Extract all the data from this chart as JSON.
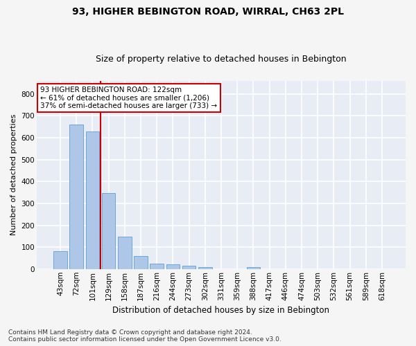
{
  "title": "93, HIGHER BEBINGTON ROAD, WIRRAL, CH63 2PL",
  "subtitle": "Size of property relative to detached houses in Bebington",
  "xlabel": "Distribution of detached houses by size in Bebington",
  "ylabel": "Number of detached properties",
  "categories": [
    "43sqm",
    "72sqm",
    "101sqm",
    "129sqm",
    "158sqm",
    "187sqm",
    "216sqm",
    "244sqm",
    "273sqm",
    "302sqm",
    "331sqm",
    "359sqm",
    "388sqm",
    "417sqm",
    "446sqm",
    "474sqm",
    "503sqm",
    "532sqm",
    "561sqm",
    "589sqm",
    "618sqm"
  ],
  "values": [
    83,
    660,
    630,
    348,
    148,
    58,
    23,
    20,
    15,
    10,
    0,
    0,
    8,
    0,
    0,
    0,
    0,
    0,
    0,
    0,
    0
  ],
  "bar_color": "#aec6e8",
  "bar_edge_color": "#5a9fd4",
  "vline_color": "#cc0000",
  "annotation_text": "93 HIGHER BEBINGTON ROAD: 122sqm\n← 61% of detached houses are smaller (1,206)\n37% of semi-detached houses are larger (733) →",
  "annotation_box_color": "#ffffff",
  "annotation_box_edge": "#cc0000",
  "bg_color": "#e8edf5",
  "grid_color": "#ffffff",
  "fig_bg_color": "#f5f5f5",
  "ylim": [
    0,
    860
  ],
  "yticks": [
    0,
    100,
    200,
    300,
    400,
    500,
    600,
    700,
    800
  ],
  "footer": "Contains HM Land Registry data © Crown copyright and database right 2024.\nContains public sector information licensed under the Open Government Licence v3.0.",
  "title_fontsize": 10,
  "subtitle_fontsize": 9,
  "ylabel_fontsize": 8,
  "xlabel_fontsize": 8.5,
  "tick_fontsize": 7.5,
  "footer_fontsize": 6.5,
  "annot_fontsize": 7.5
}
